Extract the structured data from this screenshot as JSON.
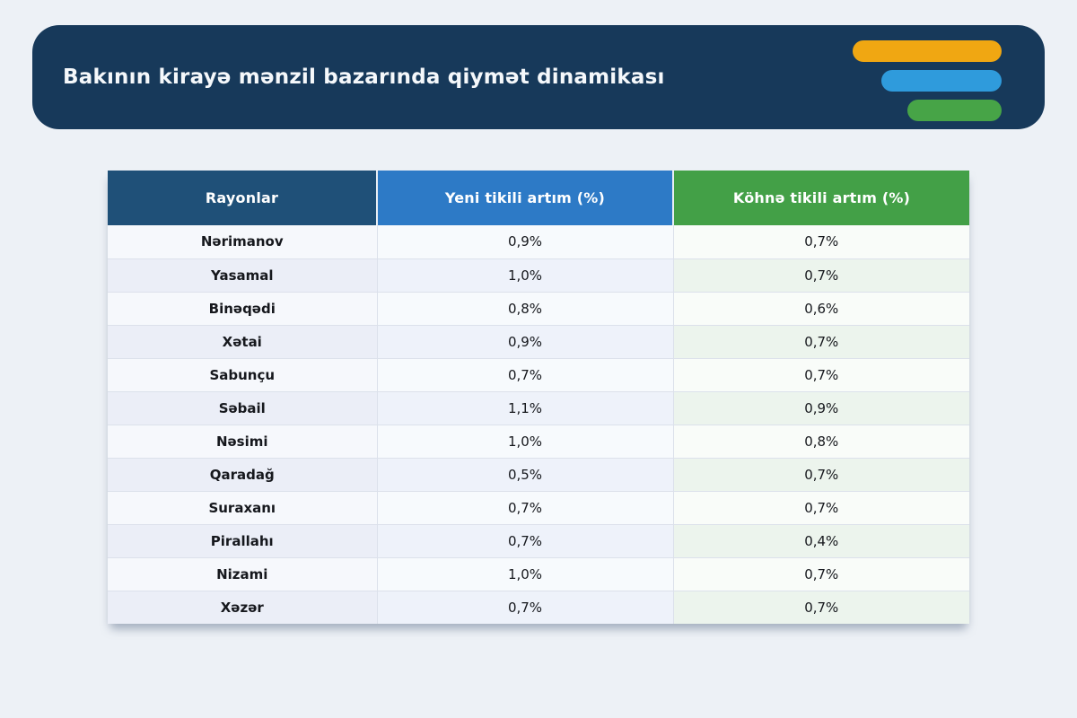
{
  "colors": {
    "page_bg": "#edf1f6",
    "header_card_bg": "#17395a",
    "logo_bar_yellow": "#f0a712",
    "logo_bar_blue": "#2f9bdc",
    "logo_bar_green": "#47a447",
    "column_header_navy": "#1f5078",
    "column_header_blue": "#2d7ac6",
    "column_header_green": "#43a047"
  },
  "header": {
    "title": "Bakının kirayə mənzil bazarında qiymət dinamikası",
    "logo_bars": [
      "yellow",
      "blue",
      "green"
    ]
  },
  "table": {
    "columns": [
      {
        "key": "rayon",
        "label": "Rayonlar"
      },
      {
        "key": "yeni",
        "label": "Yeni tikili artım (%)"
      },
      {
        "key": "kohne",
        "label": "Köhnə tikili artım (%)"
      }
    ],
    "rows": [
      {
        "rayon": "Nərimanov",
        "yeni": "0,9%",
        "kohne": "0,7%"
      },
      {
        "rayon": "Yasamal",
        "yeni": "1,0%",
        "kohne": "0,7%"
      },
      {
        "rayon": "Binəqədi",
        "yeni": "0,8%",
        "kohne": "0,6%"
      },
      {
        "rayon": "Xətai",
        "yeni": "0,9%",
        "kohne": "0,7%"
      },
      {
        "rayon": "Sabunçu",
        "yeni": "0,7%",
        "kohne": "0,7%"
      },
      {
        "rayon": "Səbail",
        "yeni": "1,1%",
        "kohne": "0,9%"
      },
      {
        "rayon": "Nəsimi",
        "yeni": "1,0%",
        "kohne": "0,8%"
      },
      {
        "rayon": "Qaradağ",
        "yeni": "0,5%",
        "kohne": "0,7%"
      },
      {
        "rayon": "Suraxanı",
        "yeni": "0,7%",
        "kohne": "0,7%"
      },
      {
        "rayon": "Pirallahı",
        "yeni": "0,7%",
        "kohne": "0,4%"
      },
      {
        "rayon": "Nizami",
        "yeni": "1,0%",
        "kohne": "0,7%"
      },
      {
        "rayon": "Xəzər",
        "yeni": "0,7%",
        "kohne": "0,7%"
      }
    ]
  },
  "chart_data": {
    "type": "table",
    "title": "Bakının kirayə mənzil bazarında qiymət dinamikası",
    "columns": [
      "Rayonlar",
      "Yeni tikili artım (%)",
      "Köhnə tikili artım (%)"
    ],
    "categories": [
      "Nərimanov",
      "Yasamal",
      "Binəqədi",
      "Xətai",
      "Sabunçu",
      "Səbail",
      "Nəsimi",
      "Qaradağ",
      "Suraxanı",
      "Pirallahı",
      "Nizami",
      "Xəzər"
    ],
    "series": [
      {
        "name": "Yeni tikili artım (%)",
        "values": [
          0.9,
          1.0,
          0.8,
          0.9,
          0.7,
          1.1,
          1.0,
          0.5,
          0.7,
          0.7,
          1.0,
          0.7
        ]
      },
      {
        "name": "Köhnə tikili artım (%)",
        "values": [
          0.7,
          0.7,
          0.6,
          0.7,
          0.7,
          0.9,
          0.8,
          0.7,
          0.7,
          0.4,
          0.7,
          0.7
        ]
      }
    ],
    "value_format": "percent, comma decimal separator",
    "legend_position": "none",
    "grid": false
  }
}
